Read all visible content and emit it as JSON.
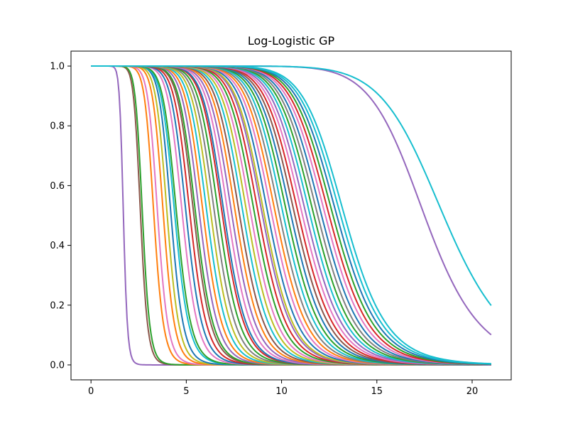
{
  "chart_data": {
    "type": "line",
    "title": "Log-Logistic GP",
    "xlabel": "",
    "ylabel": "",
    "xlim": [
      -1.05,
      22.05
    ],
    "ylim": [
      -0.05,
      1.05
    ],
    "x_ticks": [
      0,
      5,
      10,
      15,
      20
    ],
    "y_ticks": [
      0.0,
      0.2,
      0.4,
      0.6,
      0.8,
      1.0
    ],
    "x_tick_labels": [
      "0",
      "5",
      "10",
      "15",
      "20"
    ],
    "y_tick_labels": [
      "0.0",
      "0.2",
      "0.4",
      "0.6",
      "0.8",
      "1.0"
    ],
    "grid": false,
    "legend": "none",
    "x_range": [
      0,
      21
    ],
    "curve_form": "1 / (1 + (x / median)^shape)",
    "palette": [
      "#1f77b4",
      "#ff7f0e",
      "#2ca02c",
      "#d62728",
      "#9467bd",
      "#8c564b",
      "#e377c2",
      "#7f7f7f",
      "#bcbd22",
      "#17becf"
    ],
    "series": [
      {
        "median": 1.7,
        "shape": 16,
        "color": "#9467bd"
      },
      {
        "median": 2.6,
        "shape": 14,
        "color": "#8c564b"
      },
      {
        "median": 2.7,
        "shape": 14,
        "color": "#2ca02c"
      },
      {
        "median": 3.3,
        "shape": 13,
        "color": "#ff7f0e"
      },
      {
        "median": 3.5,
        "shape": 13,
        "color": "#e377c2"
      },
      {
        "median": 3.8,
        "shape": 13,
        "color": "#ff7f0e"
      },
      {
        "median": 4.0,
        "shape": 13,
        "color": "#bcbd22"
      },
      {
        "median": 4.2,
        "shape": 13,
        "color": "#1f77b4"
      },
      {
        "median": 4.4,
        "shape": 12,
        "color": "#17becf"
      },
      {
        "median": 4.5,
        "shape": 12,
        "color": "#2ca02c"
      },
      {
        "median": 4.8,
        "shape": 12,
        "color": "#e377c2"
      },
      {
        "median": 5.0,
        "shape": 12,
        "color": "#1f77b4"
      },
      {
        "median": 5.2,
        "shape": 12,
        "color": "#d62728"
      },
      {
        "median": 5.4,
        "shape": 12,
        "color": "#8c564b"
      },
      {
        "median": 5.5,
        "shape": 12,
        "color": "#2ca02c"
      },
      {
        "median": 5.7,
        "shape": 12,
        "color": "#9467bd"
      },
      {
        "median": 5.9,
        "shape": 12,
        "color": "#ff7f0e"
      },
      {
        "median": 6.1,
        "shape": 12,
        "color": "#17becf"
      },
      {
        "median": 6.3,
        "shape": 12,
        "color": "#bcbd22"
      },
      {
        "median": 6.5,
        "shape": 12,
        "color": "#7f7f7f"
      },
      {
        "median": 6.7,
        "shape": 12,
        "color": "#2ca02c"
      },
      {
        "median": 6.9,
        "shape": 12,
        "color": "#d62728"
      },
      {
        "median": 7.0,
        "shape": 12,
        "color": "#1f77b4"
      },
      {
        "median": 7.2,
        "shape": 12,
        "color": "#e377c2"
      },
      {
        "median": 7.4,
        "shape": 12,
        "color": "#9467bd"
      },
      {
        "median": 7.6,
        "shape": 12,
        "color": "#ff7f0e"
      },
      {
        "median": 7.8,
        "shape": 12,
        "color": "#8c564b"
      },
      {
        "median": 8.0,
        "shape": 12,
        "color": "#17becf"
      },
      {
        "median": 8.2,
        "shape": 12,
        "color": "#bcbd22"
      },
      {
        "median": 8.4,
        "shape": 12,
        "color": "#e377c2"
      },
      {
        "median": 8.6,
        "shape": 12,
        "color": "#2ca02c"
      },
      {
        "median": 8.8,
        "shape": 12,
        "color": "#d62728"
      },
      {
        "median": 9.0,
        "shape": 12,
        "color": "#9467bd"
      },
      {
        "median": 9.1,
        "shape": 12,
        "color": "#bcbd22"
      },
      {
        "median": 9.3,
        "shape": 12,
        "color": "#1f77b4"
      },
      {
        "median": 9.5,
        "shape": 12,
        "color": "#e377c2"
      },
      {
        "median": 9.7,
        "shape": 12,
        "color": "#ff7f0e"
      },
      {
        "median": 9.9,
        "shape": 12,
        "color": "#7f7f7f"
      },
      {
        "median": 10.1,
        "shape": 12,
        "color": "#17becf"
      },
      {
        "median": 10.3,
        "shape": 12,
        "color": "#2ca02c"
      },
      {
        "median": 10.5,
        "shape": 12,
        "color": "#1f77b4"
      },
      {
        "median": 10.7,
        "shape": 12,
        "color": "#8c564b"
      },
      {
        "median": 10.9,
        "shape": 12,
        "color": "#d62728"
      },
      {
        "median": 11.1,
        "shape": 12,
        "color": "#e377c2"
      },
      {
        "median": 11.3,
        "shape": 12,
        "color": "#9467bd"
      },
      {
        "median": 11.5,
        "shape": 12,
        "color": "#17becf"
      },
      {
        "median": 11.7,
        "shape": 12,
        "color": "#2ca02c"
      },
      {
        "median": 11.9,
        "shape": 12,
        "color": "#7f7f7f"
      },
      {
        "median": 12.1,
        "shape": 12,
        "color": "#1f77b4"
      },
      {
        "median": 12.3,
        "shape": 12,
        "color": "#e377c2"
      },
      {
        "median": 12.5,
        "shape": 12,
        "color": "#d62728"
      },
      {
        "median": 12.7,
        "shape": 12,
        "color": "#2ca02c"
      },
      {
        "median": 12.9,
        "shape": 12,
        "color": "#1f77b4"
      },
      {
        "median": 13.1,
        "shape": 12,
        "color": "#17becf"
      },
      {
        "median": 13.3,
        "shape": 12,
        "color": "#17becf"
      },
      {
        "median": 17.5,
        "shape": 12,
        "color": "#9467bd"
      },
      {
        "median": 18.5,
        "shape": 11,
        "color": "#17becf"
      }
    ]
  }
}
